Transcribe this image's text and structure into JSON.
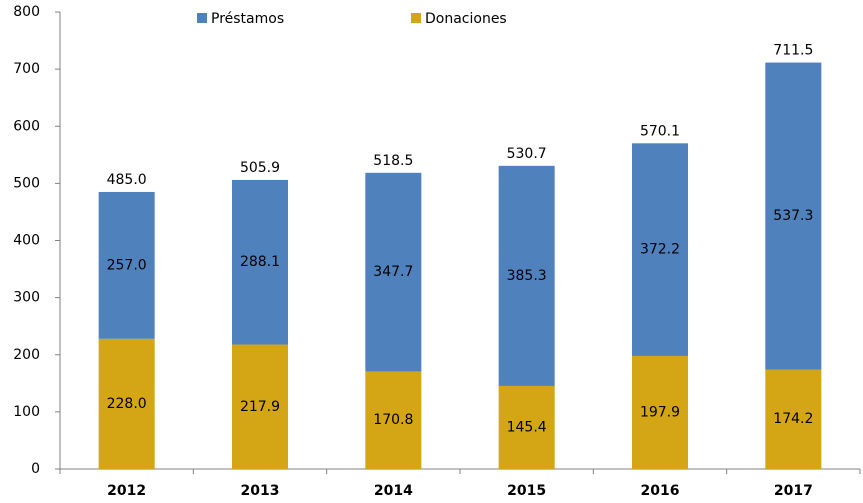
{
  "chart_data": {
    "type": "stacked_bar",
    "categories": [
      "2012",
      "2013",
      "2014",
      "2015",
      "2016",
      "2017"
    ],
    "series": [
      {
        "name": "Préstamos",
        "color": "#4f81bd",
        "values": [
          257,
          288.1,
          347.7,
          385.3,
          372.2,
          537.3
        ],
        "value_labels": [
          "257.0",
          "288.1",
          "347.7",
          "385.3",
          "372.2",
          "537.3"
        ]
      },
      {
        "name": "Donaciones",
        "color": "#d4a514",
        "values": [
          228,
          217.9,
          170.8,
          145.4,
          197.9,
          174.2
        ],
        "value_labels": [
          "228.0",
          "217.9",
          "170.8",
          "145.4",
          "197.9",
          "174.2"
        ]
      }
    ],
    "totals": {
      "values": [
        485,
        505.9,
        518.5,
        530.7,
        570.1,
        711.5
      ],
      "value_labels": [
        "485.0",
        "505.9",
        "518.5",
        "530.7",
        "570.1",
        "711.5"
      ]
    },
    "ylim": [
      0,
      800
    ],
    "yticks": [
      0,
      100,
      200,
      300,
      400,
      500,
      600,
      700,
      800
    ],
    "grid": false
  }
}
